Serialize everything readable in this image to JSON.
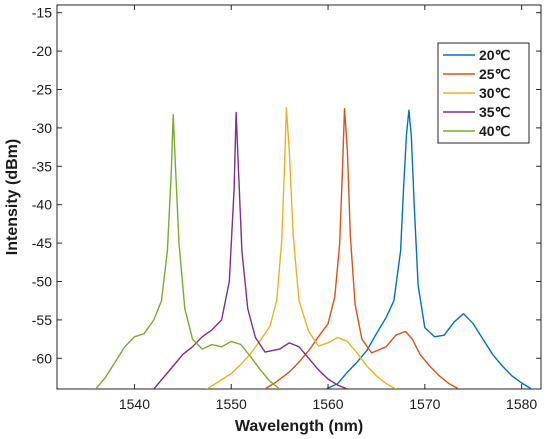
{
  "chart_data": {
    "type": "line",
    "title": "",
    "xlabel": "Wavelength (nm)",
    "ylabel": "Intensity (dBm)",
    "xlim": [
      1532,
      1582
    ],
    "ylim": [
      -64,
      -14
    ],
    "xticks": [
      1540,
      1550,
      1560,
      1570,
      1580
    ],
    "xtick_labels": [
      "1540",
      "1550",
      "1560",
      "1570",
      "1580"
    ],
    "yticks": [
      -15,
      -20,
      -25,
      -30,
      -35,
      -40,
      -45,
      -50,
      -55,
      -60
    ],
    "ytick_labels": [
      "-15",
      "-20",
      "-25",
      "-30",
      "-35",
      "-40",
      "-45",
      "-50",
      "-55",
      "-60"
    ],
    "grid": false,
    "legend_position": "top-right",
    "series": [
      {
        "name": "20℃",
        "color": "#0072BD",
        "x": [
          1559.8,
          1561,
          1562,
          1563,
          1564,
          1565,
          1566,
          1566.8,
          1567.5,
          1567.8,
          1568.1,
          1568.35,
          1568.6,
          1568.9,
          1569.3,
          1570,
          1571,
          1572,
          1573,
          1574,
          1575,
          1576,
          1577,
          1578,
          1579,
          1580,
          1581
        ],
        "y": [
          -64,
          -63.3,
          -61.8,
          -60.5,
          -59,
          -56.8,
          -54.7,
          -52.5,
          -46,
          -38,
          -31,
          -27.7,
          -31,
          -40,
          -50.5,
          -56,
          -57.2,
          -57,
          -55.3,
          -54.2,
          -55.5,
          -57.5,
          -59.5,
          -61,
          -62.3,
          -63.2,
          -64
        ]
      },
      {
        "name": "25℃",
        "color": "#D95319",
        "x": [
          1553.5,
          1554.5,
          1556,
          1557,
          1558,
          1559,
          1560,
          1560.7,
          1561.2,
          1561.5,
          1561.7,
          1562,
          1562.3,
          1562.8,
          1563.5,
          1564.5,
          1566,
          1567,
          1568,
          1568.7,
          1569.5,
          1570.5,
          1571.5,
          1572.5,
          1573.5
        ],
        "y": [
          -64,
          -63.2,
          -61.8,
          -60.5,
          -59,
          -57.2,
          -55.5,
          -52,
          -45,
          -35,
          -27.5,
          -33,
          -44,
          -53,
          -57.5,
          -59.3,
          -58.5,
          -57,
          -56.5,
          -57.5,
          -59.5,
          -61,
          -62.3,
          -63.3,
          -64
        ]
      },
      {
        "name": "30℃",
        "color": "#EDB120",
        "x": [
          1547.5,
          1548.5,
          1550,
          1551,
          1552,
          1553,
          1554,
          1554.7,
          1555.2,
          1555.5,
          1555.7,
          1556,
          1556.4,
          1557,
          1558,
          1559,
          1560,
          1561,
          1562,
          1563,
          1564,
          1565,
          1566,
          1567
        ],
        "y": [
          -64,
          -63.2,
          -62,
          -60.8,
          -59.4,
          -57.7,
          -55.8,
          -52.5,
          -45,
          -35,
          -27.4,
          -33,
          -44,
          -52.5,
          -56.5,
          -58.4,
          -58,
          -57.3,
          -57.8,
          -59.3,
          -61,
          -62.3,
          -63.3,
          -64
        ]
      },
      {
        "name": "35℃",
        "color": "#7E2F8E",
        "x": [
          1542,
          1543,
          1544,
          1545,
          1546,
          1547,
          1548,
          1549,
          1549.8,
          1550.3,
          1550.5,
          1550.7,
          1551.1,
          1551.7,
          1552.5,
          1553.5,
          1555,
          1556,
          1557,
          1558,
          1559,
          1560,
          1561,
          1562
        ],
        "y": [
          -64,
          -62.5,
          -61,
          -59.5,
          -58.5,
          -57.2,
          -56.3,
          -55,
          -50,
          -38,
          -28,
          -34,
          -46,
          -53.5,
          -57.3,
          -59.2,
          -58.8,
          -58,
          -58.5,
          -60,
          -61.5,
          -62.7,
          -63.5,
          -64
        ]
      },
      {
        "name": "40℃",
        "color": "#77AC30",
        "x": [
          1536,
          1537,
          1538,
          1539,
          1540,
          1541,
          1542,
          1542.8,
          1543.4,
          1543.8,
          1544,
          1544.2,
          1544.6,
          1545.2,
          1546,
          1547,
          1548,
          1549,
          1550,
          1551,
          1552,
          1553,
          1554,
          1555
        ],
        "y": [
          -64,
          -62.5,
          -60.5,
          -58.5,
          -57.2,
          -56.8,
          -55,
          -52.5,
          -46,
          -36,
          -28.3,
          -34,
          -45,
          -53.5,
          -57.5,
          -58.8,
          -58.2,
          -58.5,
          -57.8,
          -58.2,
          -59.8,
          -61.5,
          -63,
          -64
        ]
      }
    ]
  }
}
